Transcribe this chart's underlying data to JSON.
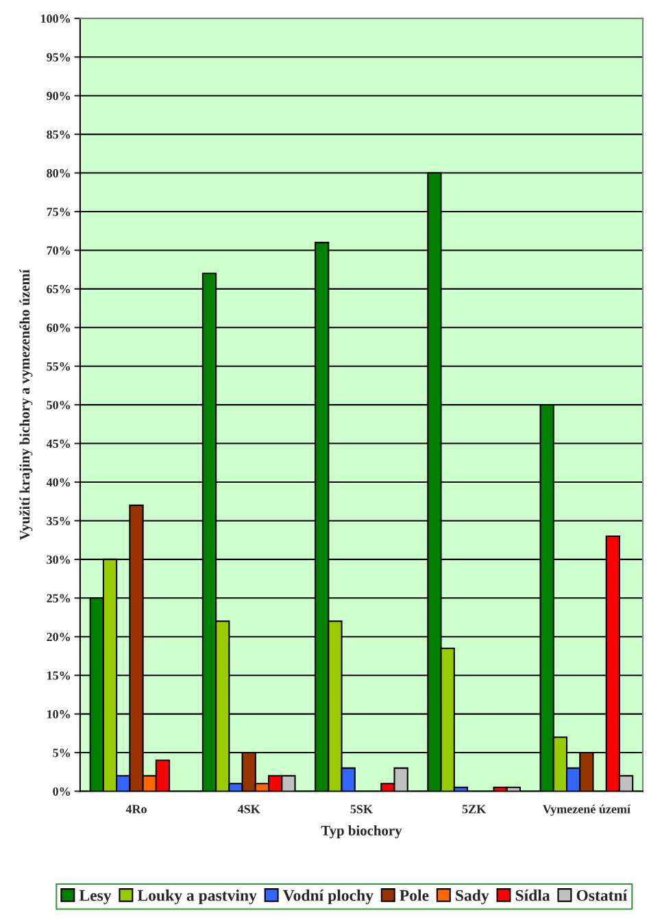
{
  "chart_data": {
    "type": "bar",
    "xlabel": "Typ biochory",
    "ylabel": "Využití krajiny bichory a vymezeného území",
    "categories": [
      "4Ro",
      "4SK",
      "5SK",
      "5ZK",
      "Vymezené území"
    ],
    "series": [
      {
        "name": "Lesy",
        "color": "#008000",
        "values": [
          25,
          67,
          71,
          80,
          50
        ]
      },
      {
        "name": "Louky a pastviny",
        "color": "#99cc00",
        "values": [
          30,
          22,
          22,
          18.5,
          7
        ]
      },
      {
        "name": "Vodní plochy",
        "color": "#3366ff",
        "values": [
          2,
          1,
          3,
          0.5,
          3
        ]
      },
      {
        "name": "Pole",
        "color": "#993300",
        "values": [
          37,
          5,
          null,
          null,
          5
        ]
      },
      {
        "name": "Sady",
        "color": "#ff6600",
        "values": [
          2,
          1,
          null,
          null,
          null
        ]
      },
      {
        "name": "Sídla",
        "color": "#ff0000",
        "values": [
          4,
          2,
          1,
          0.5,
          33
        ]
      },
      {
        "name": "Ostatní",
        "color": "#c0c0c0",
        "values": [
          null,
          2,
          3,
          0.5,
          2
        ]
      }
    ],
    "ylim": [
      0,
      100
    ],
    "yticks": [
      {
        "value": 0,
        "label": "0%"
      },
      {
        "value": 5,
        "label": "5%"
      },
      {
        "value": 10,
        "label": "10%"
      },
      {
        "value": 15,
        "label": "15%"
      },
      {
        "value": 20,
        "label": "20%"
      },
      {
        "value": 25,
        "label": "25%"
      },
      {
        "value": 30,
        "label": "30%"
      },
      {
        "value": 35,
        "label": "35%"
      },
      {
        "value": 40,
        "label": "40%"
      },
      {
        "value": 45,
        "label": "45%"
      },
      {
        "value": 50,
        "label": "50%"
      },
      {
        "value": 55,
        "label": "55%"
      },
      {
        "value": 60,
        "label": "60%"
      },
      {
        "value": 65,
        "label": "65%"
      },
      {
        "value": 70,
        "label": "70%"
      },
      {
        "value": 75,
        "label": "75%"
      },
      {
        "value": 80,
        "label": "80%"
      },
      {
        "value": 85,
        "label": "85%"
      },
      {
        "value": 90,
        "label": "90%"
      },
      {
        "value": 95,
        "label": "95%"
      },
      {
        "value": 100,
        "label": "100%"
      }
    ],
    "grid": "y",
    "legend": "bottom"
  }
}
